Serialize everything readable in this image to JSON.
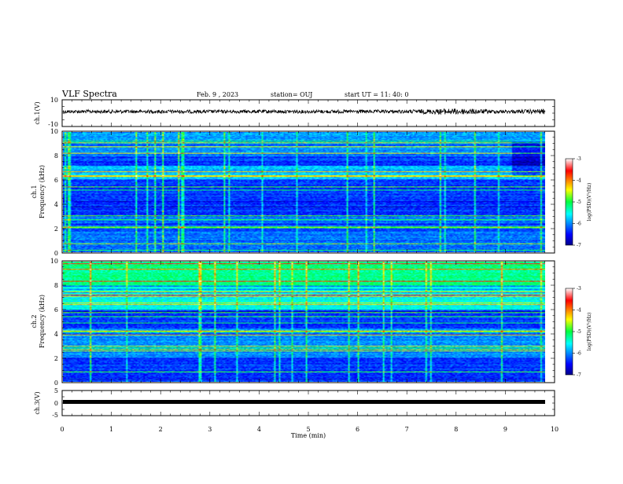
{
  "header": {
    "title": "VLF Spectra",
    "date": "Feb. 9 , 2023",
    "station": "station= OUJ",
    "start": "start  UT =  11: 40: 0"
  },
  "chart_data": [
    {
      "type": "line",
      "name": "ch1-waveform",
      "ylabel": "ch.1(V)",
      "ylim": [
        -10,
        10
      ],
      "yticks": [
        "10",
        "-10"
      ],
      "xlim": [
        0,
        9.8
      ]
    },
    {
      "type": "heatmap",
      "name": "ch1-spectrogram",
      "ylabel_line1": "ch.1",
      "ylabel_line2": "Frequency (kHz)",
      "ylim": [
        0,
        10
      ],
      "yticks": [
        "0",
        "2",
        "4",
        "6",
        "8",
        "10"
      ],
      "colorbar": {
        "label": "log(PSD)(V²/Hz)",
        "min": -7,
        "max": -3,
        "ticks": [
          "-3",
          "-4",
          "-5",
          "-6",
          "-7"
        ]
      }
    },
    {
      "type": "heatmap",
      "name": "ch2-spectrogram",
      "ylabel_line1": "ch.2",
      "ylabel_line2": "Frequency (kHz)",
      "ylim": [
        0,
        10
      ],
      "yticks": [
        "0",
        "2",
        "4",
        "6",
        "8",
        "10"
      ],
      "colorbar": {
        "label": "log(PSD)(V²/Hz)",
        "min": -7,
        "max": -3,
        "ticks": [
          "-3",
          "-4",
          "-5",
          "-6",
          "-7"
        ]
      }
    },
    {
      "type": "line",
      "name": "ch3-waveform",
      "ylabel": "ch.3(V)",
      "ylim": [
        -5,
        5
      ],
      "yticks": [
        "5",
        "0",
        "-5"
      ],
      "xlim": [
        0,
        9.8
      ]
    }
  ],
  "xaxis": {
    "label": "Time (min)",
    "ticks": [
      "0",
      "1",
      "2",
      "3",
      "4",
      "5",
      "6",
      "7",
      "8",
      "9",
      "10"
    ],
    "range": [
      0,
      10
    ]
  },
  "colors": {
    "background": "#ffffff",
    "waveform": "#000000",
    "spectro_low": "#00008a",
    "spectro_high": "#ff0000"
  }
}
